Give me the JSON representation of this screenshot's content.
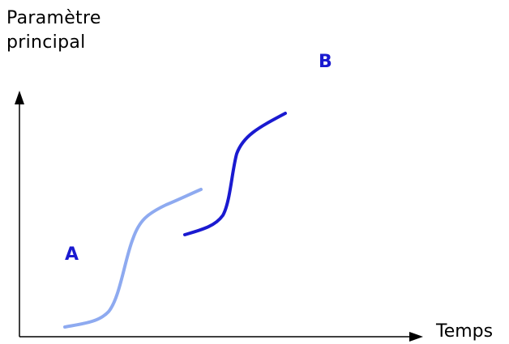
{
  "axes": {
    "y_label_lines": [
      "Paramètre",
      "principal"
    ],
    "x_label": "Temps"
  },
  "curves": [
    {
      "label": "A",
      "color": "#8eaaf0"
    },
    {
      "label": "B",
      "color": "#1a1ad0"
    }
  ],
  "colors": {
    "axis": "#000000",
    "background": "#ffffff"
  }
}
